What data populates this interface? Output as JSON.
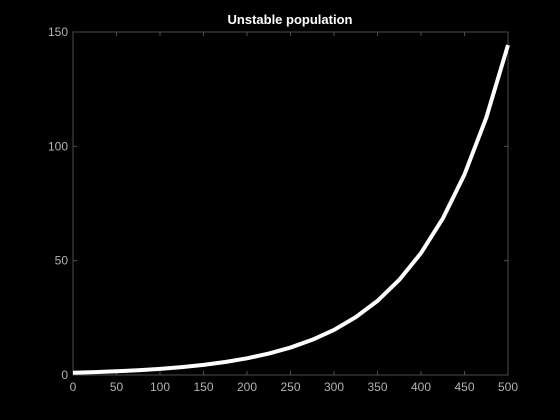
{
  "chart_data": {
    "type": "line",
    "title": "Unstable population",
    "xlabel": "",
    "ylabel": "",
    "xlim": [
      0,
      500
    ],
    "ylim": [
      0,
      150
    ],
    "xticks": [
      0,
      50,
      100,
      150,
      200,
      250,
      300,
      350,
      400,
      450,
      500
    ],
    "yticks": [
      0,
      50,
      100,
      150
    ],
    "grid": false,
    "legend": "none",
    "colors": {
      "background": "#000000",
      "axes": "#4d4d4d",
      "tick_labels": "#b3b3b3",
      "title": "#ffffff",
      "line": "#ffffff"
    },
    "series": [
      {
        "x": [
          0,
          25,
          50,
          75,
          100,
          125,
          150,
          175,
          200,
          225,
          250,
          275,
          300,
          325,
          350,
          375,
          400,
          425,
          450,
          475,
          500
        ],
        "values": [
          1.0,
          1.28,
          1.64,
          2.1,
          2.7,
          3.46,
          4.43,
          5.69,
          7.3,
          9.36,
          12.0,
          15.4,
          19.7,
          25.3,
          32.4,
          41.6,
          53.3,
          68.4,
          87.7,
          112.5,
          144.3
        ]
      }
    ]
  }
}
